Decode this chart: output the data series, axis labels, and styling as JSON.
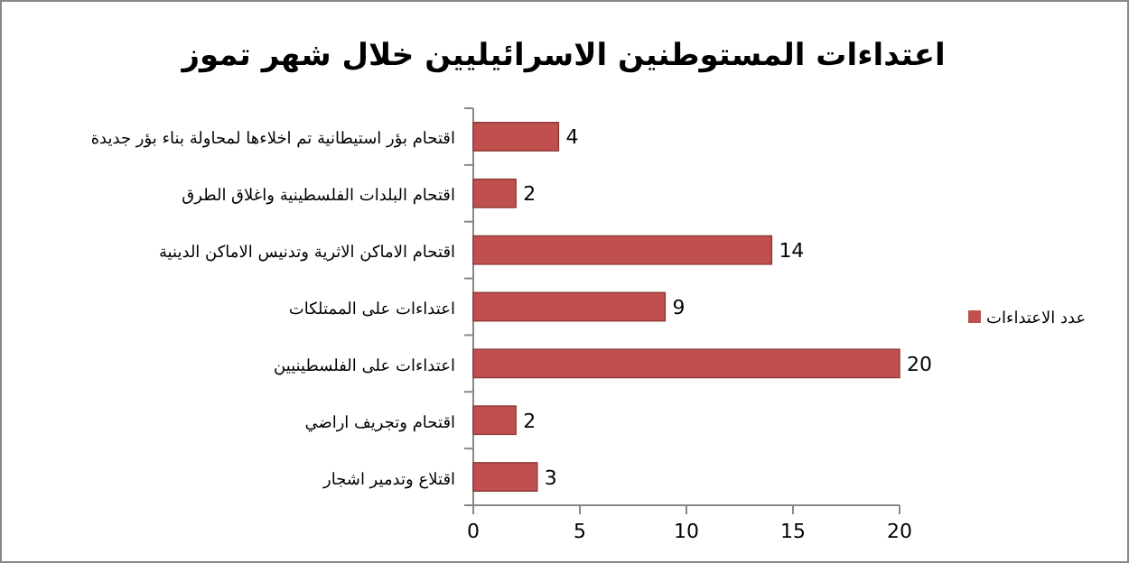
{
  "chart_data": {
    "type": "bar",
    "orientation": "horizontal",
    "title": "اعتداءات المستوطنين الاسرائيليين خلال شهر تموز",
    "categories": [
      "اقتحام بؤر استيطانية تم اخلاءها لمحاولة بناء بؤر جديدة",
      "اقتحام البلدات الفلسطينية واغلاق الطرق",
      "اقتحام الاماكن الاثرية وتدنيس الاماكن الدينية",
      "اعتداءات على الممتلكات",
      "اعتداءات على الفلسطينيين",
      "اقتحام وتجريف اراضي",
      "اقتلاع وتدمير اشجار"
    ],
    "series": [
      {
        "name": "عدد الاعتداءات",
        "color": "#c0504d",
        "values": [
          4,
          2,
          14,
          9,
          20,
          2,
          3
        ]
      }
    ],
    "xlim": [
      0,
      20
    ],
    "xticks": [
      0,
      5,
      10,
      15,
      20
    ],
    "data_labels": true,
    "legend": "right",
    "grid": false
  }
}
